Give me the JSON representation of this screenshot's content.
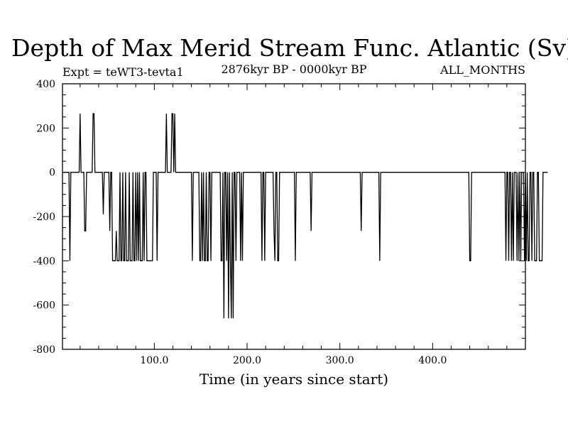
{
  "chart_data": {
    "type": "line",
    "title": "Depth of Max Merid Stream Func. Atlantic (Sv)",
    "subtitle_left": "Expt = teWT3-tevta1",
    "subtitle_center": "2876kyr BP - 0000kyr BP",
    "subtitle_right": "ALL_MONTHS",
    "xlabel": "Time (in years since start)",
    "ylabel": "",
    "xlim": [
      1,
      500
    ],
    "ylim": [
      -800,
      400
    ],
    "xticks": [
      100,
      200,
      300,
      400
    ],
    "xtick_labels": [
      "100.0",
      "200.0",
      "300.0",
      "400.0"
    ],
    "yticks": [
      400,
      200,
      0,
      -200,
      -400,
      -600,
      -800
    ],
    "ytick_labels": [
      "400",
      "200",
      "0",
      "-200",
      "-400",
      "-600",
      "-800"
    ],
    "grid": false,
    "color": "#000000",
    "series": [
      {
        "values_start_year": 1,
        "values_step": 1,
        "values": [
          0,
          0,
          0,
          0,
          0,
          0,
          0,
          0,
          -400,
          0,
          0,
          0,
          0,
          0,
          0,
          0,
          0,
          0,
          0,
          265,
          0,
          0,
          0,
          0,
          -265,
          -265,
          0,
          0,
          0,
          0,
          0,
          0,
          0,
          265,
          265,
          0,
          0,
          0,
          0,
          0,
          0,
          0,
          0,
          0,
          -190,
          0,
          0,
          0,
          0,
          0,
          0,
          -265,
          0,
          0,
          -400,
          -400,
          -400,
          -400,
          -265,
          -400,
          -400,
          -400,
          0,
          -400,
          -400,
          0,
          -400,
          -400,
          0,
          -400,
          -400,
          -400,
          0,
          -400,
          -400,
          -400,
          0,
          -400,
          -400,
          0,
          -400,
          0,
          -400,
          0,
          -400,
          -400,
          -400,
          0,
          -400,
          0,
          0,
          -400,
          -400,
          -400,
          -400,
          -400,
          -400,
          -400,
          0,
          0,
          0,
          0,
          -400,
          0,
          0,
          0,
          0,
          0,
          0,
          0,
          0,
          0,
          265,
          0,
          0,
          0,
          0,
          0,
          265,
          265,
          0,
          265,
          0,
          0,
          0,
          0,
          0,
          0,
          0,
          0,
          0,
          0,
          0,
          0,
          0,
          0,
          0,
          0,
          0,
          0,
          -400,
          0,
          0,
          0,
          0,
          0,
          0,
          0,
          -400,
          -400,
          0,
          -400,
          0,
          -400,
          -400,
          0,
          -400,
          -400,
          0,
          0,
          -400,
          0,
          0,
          0,
          0,
          0,
          0,
          0,
          0,
          0,
          0,
          -400,
          -400,
          0,
          -660,
          0,
          0,
          -400,
          0,
          -660,
          0,
          -400,
          -660,
          0,
          -660,
          0,
          0,
          -400,
          0,
          0,
          0,
          0,
          -400,
          0,
          -400,
          0,
          0,
          0,
          0,
          0,
          0,
          0,
          0,
          0,
          0,
          0,
          0,
          0,
          0,
          0,
          0,
          0,
          0,
          0,
          0,
          -400,
          0,
          0,
          -400,
          0,
          0,
          0,
          0,
          0,
          0,
          0,
          0,
          0,
          -265,
          -400,
          0,
          0,
          -400,
          -400,
          0,
          0,
          0,
          0,
          0,
          0,
          0,
          0,
          0,
          0,
          0,
          0,
          0,
          0,
          0,
          0,
          0,
          -400,
          0,
          0,
          0,
          0,
          0,
          0,
          0,
          0,
          0,
          0,
          0,
          0,
          0,
          0,
          0,
          0,
          -265,
          0,
          0,
          0,
          0,
          0,
          0,
          0,
          0,
          0,
          0,
          0,
          0,
          0,
          0,
          0,
          0,
          0,
          0,
          0,
          0,
          0,
          0,
          0,
          0,
          0,
          0,
          0,
          0,
          0,
          0,
          0,
          0,
          0,
          0,
          0,
          0,
          0,
          0,
          0,
          0,
          0,
          0,
          0,
          0,
          0,
          0,
          0,
          0,
          0,
          0,
          0,
          0,
          0,
          -265,
          0,
          0,
          0,
          0,
          0,
          0,
          0,
          0,
          0,
          0,
          0,
          0,
          0,
          0,
          0,
          0,
          0,
          0,
          0,
          -400,
          0,
          0,
          0,
          0,
          0,
          0,
          0,
          0,
          0,
          0,
          0,
          0,
          0,
          0,
          0,
          0,
          0,
          0,
          0,
          0,
          0,
          0,
          0,
          0,
          0,
          0,
          0,
          0,
          0,
          0,
          0,
          0,
          0,
          0,
          0,
          0,
          0,
          0,
          0,
          0,
          0,
          0,
          0,
          0,
          0,
          0,
          0,
          0,
          0,
          0,
          0,
          0,
          0,
          0,
          0,
          0,
          0,
          0,
          0,
          0,
          0,
          0,
          0,
          0,
          0,
          0,
          0,
          0,
          0,
          0,
          0,
          0,
          0,
          0,
          0,
          0,
          0,
          0,
          0,
          0,
          0,
          0,
          0,
          0,
          0,
          0,
          0,
          0,
          0,
          0,
          0,
          0,
          0,
          0,
          0,
          0,
          -400,
          -400,
          0,
          0,
          0,
          0,
          0,
          0,
          0,
          0,
          0,
          0,
          0,
          0,
          0,
          0,
          0,
          0,
          0,
          0,
          0,
          0,
          0,
          0,
          0,
          0,
          0,
          0,
          0,
          0,
          0,
          0,
          0,
          0,
          0,
          0,
          0,
          0,
          0,
          -400,
          0,
          0,
          -400,
          0,
          0,
          -400,
          0,
          -400,
          0,
          0,
          0,
          -400,
          0,
          -400,
          0,
          -400,
          0,
          0,
          0,
          -400,
          0,
          -400,
          0,
          -400,
          -400,
          0,
          0,
          -400,
          0,
          0,
          -400,
          -400,
          -400,
          0,
          0,
          -400,
          -400,
          -400,
          -400,
          0,
          0,
          0,
          0,
          0,
          0
        ]
      }
    ]
  }
}
